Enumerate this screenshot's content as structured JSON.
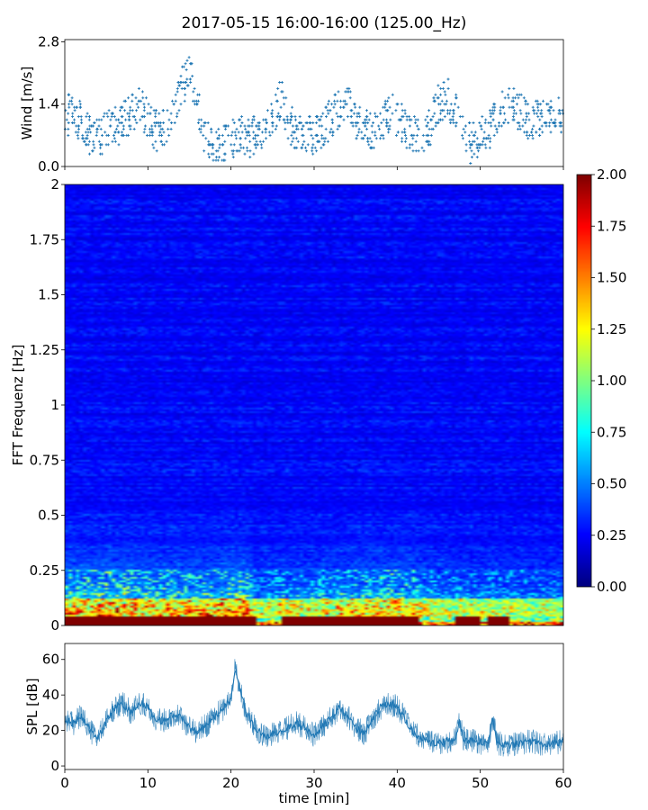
{
  "figure": {
    "title": "2017-05-15 16:00-16:00 (125.00_Hz)"
  },
  "chart_data": [
    {
      "type": "scatter",
      "panel": "wind",
      "ylabel": "Wind [m/s]",
      "xlabel": "",
      "xlim": [
        0,
        60
      ],
      "ylim": [
        0,
        2.85
      ],
      "yticks": [
        "0.0",
        "1.4",
        "2.8"
      ],
      "ytick_values": [
        0,
        1.4,
        2.8
      ],
      "xticks_labeled": false,
      "color": "#1f77b4",
      "marker": "small plus",
      "trend": {
        "x": [
          0,
          1,
          2,
          3,
          4,
          5,
          6,
          7,
          8,
          9,
          10,
          11,
          12,
          13,
          14,
          15,
          16,
          17,
          18,
          19,
          20,
          21,
          22,
          23,
          24,
          25,
          26,
          27,
          28,
          29,
          30,
          31,
          32,
          33,
          34,
          35,
          36,
          37,
          38,
          39,
          40,
          41,
          42,
          43,
          44,
          45,
          46,
          47,
          48,
          49,
          50,
          51,
          52,
          53,
          54,
          55,
          56,
          57,
          58,
          59,
          60
        ],
        "y": [
          1.1,
          1.2,
          1.0,
          0.7,
          0.6,
          0.8,
          0.9,
          1.0,
          1.2,
          1.4,
          1.0,
          0.8,
          0.9,
          1.3,
          1.8,
          2.1,
          1.3,
          0.6,
          0.5,
          0.5,
          0.6,
          0.8,
          0.6,
          0.7,
          0.9,
          1.1,
          1.5,
          1.0,
          0.7,
          0.6,
          0.7,
          0.9,
          1.1,
          1.3,
          1.4,
          1.0,
          0.9,
          0.8,
          1.0,
          1.2,
          1.1,
          0.9,
          0.8,
          0.6,
          0.9,
          1.4,
          1.6,
          1.2,
          0.7,
          0.5,
          0.6,
          0.8,
          1.1,
          1.3,
          1.4,
          1.2,
          1.0,
          1.1,
          1.3,
          1.2,
          1.1
        ]
      }
    },
    {
      "type": "heatmap",
      "panel": "spectrogram",
      "ylabel": "FFT Frequenz [Hz]",
      "xlabel": "",
      "xlim": [
        0,
        60
      ],
      "ylim": [
        0,
        2
      ],
      "yticks": [
        "0",
        "0.25",
        "0.5",
        "0.75",
        "1",
        "1.25",
        "1.5",
        "1.75",
        "2"
      ],
      "ytick_values": [
        0,
        0.25,
        0.5,
        0.75,
        1,
        1.25,
        1.5,
        1.75,
        2
      ],
      "colormap": "jet",
      "clim": [
        0,
        2
      ],
      "colorbar_ticks": [
        "0.00",
        "0.25",
        "0.50",
        "0.75",
        "1.00",
        "1.25",
        "1.50",
        "1.75",
        "2.00"
      ],
      "colorbar_tick_values": [
        0,
        0.25,
        0.5,
        0.75,
        1,
        1.25,
        1.5,
        1.75,
        2
      ],
      "activity": {
        "x": [
          0,
          2,
          4,
          6,
          8,
          10,
          12,
          14,
          16,
          18,
          20,
          22,
          23,
          24,
          26,
          28,
          30,
          32,
          34,
          36,
          38,
          40,
          42,
          44,
          46,
          48,
          50,
          52,
          54,
          56,
          58,
          60
        ],
        "level": [
          0.9,
          0.85,
          0.9,
          0.95,
          0.9,
          0.85,
          0.8,
          0.85,
          0.8,
          0.85,
          1.0,
          0.95,
          0.4,
          0.55,
          0.6,
          0.6,
          0.65,
          0.65,
          0.7,
          0.75,
          0.8,
          0.8,
          0.75,
          0.6,
          0.55,
          0.5,
          0.5,
          0.5,
          0.5,
          0.45,
          0.45,
          0.45
        ]
      },
      "saturated_low_band_segments": [
        [
          0,
          23
        ],
        [
          26,
          42.5
        ],
        [
          47,
          50
        ],
        [
          51,
          53.5
        ]
      ]
    },
    {
      "type": "line",
      "panel": "spl",
      "ylabel": "SPL [dB]",
      "xlabel": "time [min]",
      "xlim": [
        0,
        60
      ],
      "ylim": [
        -2,
        69
      ],
      "yticks": [
        "0",
        "20",
        "40",
        "60"
      ],
      "ytick_values": [
        0,
        20,
        40,
        60
      ],
      "xticks": [
        "0",
        "10",
        "20",
        "30",
        "40",
        "50",
        "60"
      ],
      "xtick_values": [
        0,
        10,
        20,
        30,
        40,
        50,
        60
      ],
      "color": "#1f77b4",
      "x": [
        0,
        1,
        2,
        3,
        4,
        5,
        6,
        7,
        8,
        9,
        10,
        11,
        12,
        13,
        14,
        15,
        16,
        17,
        18,
        19,
        20,
        20.5,
        21,
        22,
        23,
        24,
        25,
        26,
        27,
        28,
        29,
        30,
        31,
        32,
        33,
        34,
        35,
        36,
        37,
        38,
        39,
        40,
        41,
        42,
        43,
        44,
        45,
        46,
        47,
        47.5,
        48,
        49,
        50,
        51,
        51.5,
        52,
        53,
        54,
        55,
        56,
        57,
        58,
        59,
        60
      ],
      "y": [
        27,
        24,
        28,
        20,
        16,
        25,
        33,
        35,
        30,
        36,
        33,
        25,
        26,
        29,
        27,
        22,
        19,
        23,
        28,
        32,
        38,
        56,
        44,
        28,
        21,
        17,
        18,
        19,
        22,
        24,
        21,
        17,
        22,
        27,
        33,
        28,
        22,
        18,
        26,
        33,
        35,
        34,
        26,
        18,
        16,
        13,
        13,
        14,
        15,
        25,
        15,
        14,
        13,
        14,
        27,
        13,
        12,
        12,
        13,
        14,
        13,
        12,
        13,
        14
      ]
    }
  ]
}
